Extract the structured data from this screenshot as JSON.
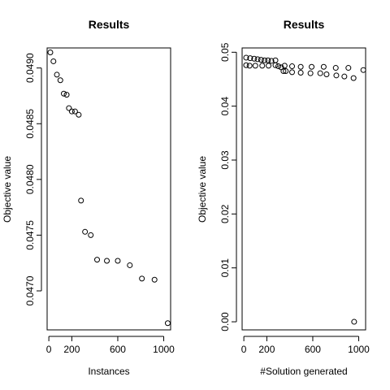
{
  "chart_data": [
    {
      "type": "scatter",
      "title": "Results",
      "xlabel": "Instances",
      "ylabel": "Objective value",
      "xlim": [
        -15,
        1060
      ],
      "ylim": [
        0.04665,
        0.04918
      ],
      "xticks": [
        0,
        200,
        600,
        1000
      ],
      "yticks": [
        0.047,
        0.0475,
        0.048,
        0.0485,
        0.049
      ],
      "ytick_labels": [
        "0.0470",
        "0.0475",
        "0.0480",
        "0.0485",
        "0.0490"
      ],
      "grid": false,
      "marker": "open-circle",
      "points": [
        {
          "x": 13,
          "y": 0.04914
        },
        {
          "x": 40,
          "y": 0.04906
        },
        {
          "x": 70,
          "y": 0.04894
        },
        {
          "x": 100,
          "y": 0.04889
        },
        {
          "x": 130,
          "y": 0.04877
        },
        {
          "x": 155,
          "y": 0.04876
        },
        {
          "x": 175,
          "y": 0.04864
        },
        {
          "x": 200,
          "y": 0.04861
        },
        {
          "x": 228,
          "y": 0.04861
        },
        {
          "x": 260,
          "y": 0.04858
        },
        {
          "x": 280,
          "y": 0.04781
        },
        {
          "x": 315,
          "y": 0.04753
        },
        {
          "x": 365,
          "y": 0.0475
        },
        {
          "x": 420,
          "y": 0.04728
        },
        {
          "x": 505,
          "y": 0.04727
        },
        {
          "x": 600,
          "y": 0.04727
        },
        {
          "x": 705,
          "y": 0.04723
        },
        {
          "x": 810,
          "y": 0.04711
        },
        {
          "x": 920,
          "y": 0.0471
        },
        {
          "x": 1035,
          "y": 0.04671
        }
      ]
    },
    {
      "type": "scatter",
      "title": "Results",
      "xlabel": "#Solution generated",
      "ylabel": "Objective value",
      "xlim": [
        -15,
        1060
      ],
      "ylim": [
        -0.0015,
        0.0508
      ],
      "xticks": [
        0,
        200,
        600,
        1000
      ],
      "yticks": [
        0,
        0.01,
        0.02,
        0.03,
        0.04,
        0.05
      ],
      "ytick_labels": [
        "0.00",
        "0.01",
        "0.02",
        "0.03",
        "0.04",
        "0.05"
      ],
      "grid": false,
      "marker": "open-circle",
      "points": [
        {
          "x": 20,
          "y": 0.049
        },
        {
          "x": 55,
          "y": 0.0489
        },
        {
          "x": 90,
          "y": 0.0488
        },
        {
          "x": 120,
          "y": 0.0487
        },
        {
          "x": 150,
          "y": 0.0486
        },
        {
          "x": 180,
          "y": 0.0485
        },
        {
          "x": 210,
          "y": 0.0485
        },
        {
          "x": 240,
          "y": 0.0484
        },
        {
          "x": 275,
          "y": 0.0485
        },
        {
          "x": 20,
          "y": 0.0476
        },
        {
          "x": 50,
          "y": 0.0475
        },
        {
          "x": 100,
          "y": 0.0475
        },
        {
          "x": 160,
          "y": 0.0475
        },
        {
          "x": 215,
          "y": 0.0475
        },
        {
          "x": 275,
          "y": 0.0476
        },
        {
          "x": 300,
          "y": 0.0474
        },
        {
          "x": 325,
          "y": 0.0472
        },
        {
          "x": 345,
          "y": 0.0465
        },
        {
          "x": 365,
          "y": 0.0465
        },
        {
          "x": 355,
          "y": 0.0475
        },
        {
          "x": 420,
          "y": 0.0474
        },
        {
          "x": 495,
          "y": 0.0473
        },
        {
          "x": 590,
          "y": 0.0473
        },
        {
          "x": 695,
          "y": 0.0473
        },
        {
          "x": 800,
          "y": 0.0471
        },
        {
          "x": 910,
          "y": 0.0471
        },
        {
          "x": 1040,
          "y": 0.0467
        },
        {
          "x": 420,
          "y": 0.0463
        },
        {
          "x": 495,
          "y": 0.0462
        },
        {
          "x": 580,
          "y": 0.0461
        },
        {
          "x": 665,
          "y": 0.0461
        },
        {
          "x": 720,
          "y": 0.0459
        },
        {
          "x": 805,
          "y": 0.0457
        },
        {
          "x": 875,
          "y": 0.0455
        },
        {
          "x": 955,
          "y": 0.0452
        },
        {
          "x": 960,
          "y": 0.0
        }
      ]
    }
  ]
}
